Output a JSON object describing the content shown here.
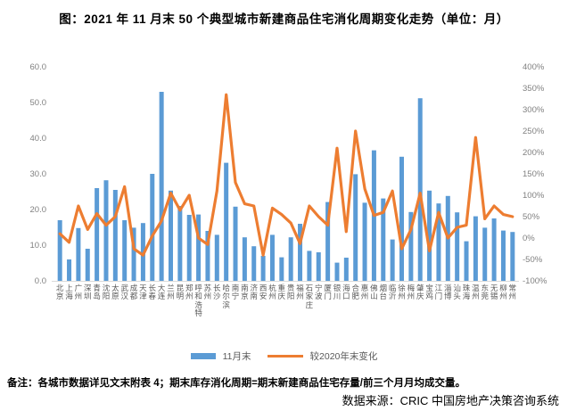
{
  "title": "图：2021 年 11 月末 50 个典型城市新建商品住宅消化周期变化走势（单位：月）",
  "footer": {
    "note": "备注：各城市数据详见文末附表 4；期末库存消化周期=期末新建商品住宅存量/前三个月月均成交量。",
    "source": "数据来源：CRIC 中国房地产决策咨询系统"
  },
  "legend": {
    "bar_label": "11月末",
    "line_label": "较2020年末变化"
  },
  "colors": {
    "bar": "#5B9BD5",
    "line": "#ED7D31",
    "axis_text": "#808080",
    "city_text": "#595959",
    "axis_line": "#D9D9D9"
  },
  "chart_data": {
    "type": "combo",
    "title": "图：2021 年 11 月末 50 个典型城市新建商品住宅消化周期变化走势（单位：月）",
    "categories": [
      "北京",
      "上海",
      "广州",
      "深圳",
      "青岛",
      "沈阳",
      "太原",
      "武汉",
      "成都",
      "天津",
      "长春",
      "大连",
      "兰州",
      "昆明",
      "郑州",
      "呼和浩特",
      "苏州",
      "长沙",
      "哈尔滨",
      "南宁",
      "南京",
      "济南",
      "西安",
      "杭州",
      "重庆",
      "贵阳",
      "福州",
      "石家庄",
      "宁波",
      "厦门",
      "银川",
      "海口",
      "合肥",
      "惠州",
      "佛山",
      "烟台",
      "临沂",
      "徐州",
      "梅州",
      "肇庆",
      "宝鸡",
      "江门",
      "淄博",
      "汕头",
      "珠海",
      "温州",
      "东莞",
      "无锡",
      "柳州",
      "常州"
    ],
    "series": [
      {
        "name": "11月末",
        "type": "bar",
        "axis": "left",
        "unit": "月",
        "values": [
          17.0,
          6.0,
          14.8,
          9.0,
          26.0,
          28.2,
          25.5,
          17.0,
          14.9,
          16.2,
          30.0,
          53.0,
          25.3,
          21.0,
          18.5,
          18.6,
          14.0,
          12.9,
          33.1,
          20.8,
          12.2,
          9.7,
          7.0,
          12.9,
          6.6,
          12.2,
          16.0,
          8.4,
          8.0,
          22.1,
          5.1,
          6.5,
          29.9,
          21.9,
          36.6,
          23.1,
          11.6,
          34.8,
          19.3,
          51.2,
          25.3,
          21.7,
          23.8,
          19.2,
          11.1,
          18.1,
          14.9,
          17.5,
          14.1,
          13.7
        ]
      },
      {
        "name": "较2020年末变化",
        "type": "line",
        "axis": "right",
        "unit": "%",
        "values": [
          10,
          -10,
          75,
          20,
          57,
          30,
          50,
          120,
          -25,
          -40,
          5,
          40,
          105,
          65,
          100,
          0,
          -15,
          110,
          335,
          130,
          80,
          75,
          -40,
          70,
          55,
          35,
          -13,
          75,
          50,
          30,
          210,
          15,
          250,
          115,
          53,
          60,
          110,
          -25,
          20,
          105,
          -30,
          60,
          0,
          25,
          30,
          235,
          45,
          75,
          55,
          50
        ]
      }
    ],
    "left_axis": {
      "min": 0,
      "max": 60,
      "step": 10,
      "labels": [
        "60.0",
        "50.0",
        "40.0",
        "30.0",
        "20.0",
        "10.0",
        "0.0"
      ]
    },
    "right_axis": {
      "min": -100,
      "max": 400,
      "step": 50,
      "labels": [
        "400%",
        "350%",
        "300%",
        "250%",
        "200%",
        "150%",
        "100%",
        "50%",
        "0%",
        "-50%",
        "-100%"
      ]
    },
    "grid": false,
    "legend_position": "bottom"
  }
}
